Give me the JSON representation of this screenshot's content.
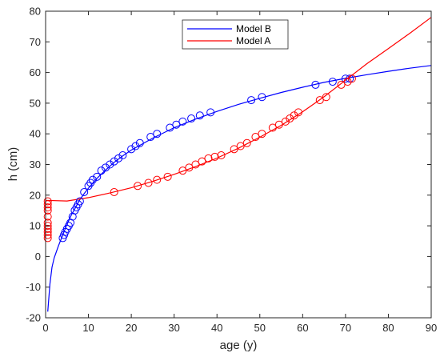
{
  "chart_data": {
    "type": "scatter",
    "title": "",
    "xlabel": "age (y)",
    "ylabel": "h (cm)",
    "xlim": [
      0,
      90
    ],
    "ylim": [
      -20,
      80
    ],
    "xticks": [
      0,
      10,
      20,
      30,
      40,
      50,
      60,
      70,
      80,
      90
    ],
    "yticks": [
      -20,
      -10,
      0,
      10,
      20,
      30,
      40,
      50,
      60,
      70,
      80
    ],
    "grid": false,
    "legend_position": "top-center",
    "series": [
      {
        "name": "Model B",
        "color": "#0000ff",
        "fit_curve": [
          [
            0.5,
            -18
          ],
          [
            1,
            -9
          ],
          [
            1.5,
            -3.5
          ],
          [
            2,
            -0.5
          ],
          [
            3,
            3.5
          ],
          [
            4,
            7
          ],
          [
            5,
            10.5
          ],
          [
            6,
            13.5
          ],
          [
            7,
            16
          ],
          [
            8,
            18.5
          ],
          [
            9,
            20.5
          ],
          [
            10,
            22.3
          ],
          [
            12,
            25.5
          ],
          [
            14,
            28.2
          ],
          [
            16,
            30.7
          ],
          [
            18,
            32.8
          ],
          [
            20,
            34.7
          ],
          [
            25,
            38.6
          ],
          [
            30,
            42
          ],
          [
            35,
            44.8
          ],
          [
            40,
            47.3
          ],
          [
            45,
            49.6
          ],
          [
            50,
            51.6
          ],
          [
            55,
            53.5
          ],
          [
            60,
            55.2
          ],
          [
            65,
            56.8
          ],
          [
            70,
            58.1
          ],
          [
            75,
            59.3
          ],
          [
            80,
            60.4
          ],
          [
            85,
            61.4
          ],
          [
            90,
            62.3
          ]
        ],
        "points": [
          [
            4,
            6
          ],
          [
            4.3,
            7
          ],
          [
            4.6,
            8
          ],
          [
            5,
            9
          ],
          [
            5.4,
            10
          ],
          [
            5.8,
            11
          ],
          [
            6.3,
            13
          ],
          [
            6.8,
            15
          ],
          [
            7.2,
            16
          ],
          [
            7.6,
            17
          ],
          [
            8,
            18
          ],
          [
            9,
            21
          ],
          [
            10,
            23
          ],
          [
            10.5,
            24
          ],
          [
            11,
            25
          ],
          [
            12,
            26
          ],
          [
            13,
            28
          ],
          [
            14,
            29
          ],
          [
            15,
            30
          ],
          [
            16,
            31
          ],
          [
            17,
            32
          ],
          [
            18,
            33
          ],
          [
            20,
            35
          ],
          [
            21,
            36
          ],
          [
            22,
            37
          ],
          [
            24.5,
            39
          ],
          [
            26,
            40
          ],
          [
            29,
            42
          ],
          [
            30.5,
            43
          ],
          [
            32,
            44
          ],
          [
            34,
            45
          ],
          [
            36,
            46
          ],
          [
            38.5,
            47
          ],
          [
            48,
            51
          ],
          [
            50.5,
            52
          ],
          [
            63,
            56
          ],
          [
            67,
            57
          ],
          [
            70,
            58
          ],
          [
            71,
            58
          ]
        ]
      },
      {
        "name": "Model A",
        "color": "#ff0000",
        "fit_curve": [
          [
            0,
            18.3
          ],
          [
            5,
            18.1
          ],
          [
            10,
            19.2
          ],
          [
            15,
            20.7
          ],
          [
            20,
            22.4
          ],
          [
            25,
            24.5
          ],
          [
            30,
            26.8
          ],
          [
            35,
            29.3
          ],
          [
            40,
            32.1
          ],
          [
            45,
            35.3
          ],
          [
            50,
            38.9
          ],
          [
            55,
            42.8
          ],
          [
            60,
            47.2
          ],
          [
            65,
            52.1
          ],
          [
            70,
            57.5
          ],
          [
            75,
            62.9
          ],
          [
            80,
            67.8
          ],
          [
            85,
            72.8
          ],
          [
            90,
            78
          ]
        ],
        "points": [
          [
            0.5,
            6
          ],
          [
            0.5,
            7
          ],
          [
            0.5,
            8
          ],
          [
            0.5,
            9
          ],
          [
            0.5,
            10
          ],
          [
            0.5,
            11
          ],
          [
            0.5,
            13
          ],
          [
            0.5,
            15
          ],
          [
            0.5,
            16
          ],
          [
            0.5,
            17
          ],
          [
            0.5,
            18
          ],
          [
            16,
            21
          ],
          [
            21.5,
            23
          ],
          [
            24,
            24
          ],
          [
            26,
            25
          ],
          [
            28.5,
            26
          ],
          [
            32,
            28
          ],
          [
            33.5,
            29
          ],
          [
            35,
            30
          ],
          [
            36.5,
            31
          ],
          [
            38,
            32
          ],
          [
            39.5,
            32.5
          ],
          [
            41,
            33
          ],
          [
            44,
            35
          ],
          [
            45.5,
            36
          ],
          [
            47,
            37
          ],
          [
            49,
            39
          ],
          [
            50.5,
            40
          ],
          [
            53,
            42
          ],
          [
            54.5,
            43
          ],
          [
            56,
            44
          ],
          [
            57,
            45
          ],
          [
            58,
            46
          ],
          [
            59,
            47
          ],
          [
            64,
            51
          ],
          [
            65.5,
            52
          ],
          [
            69,
            56
          ],
          [
            70.5,
            57
          ],
          [
            71.5,
            58
          ]
        ]
      }
    ]
  }
}
